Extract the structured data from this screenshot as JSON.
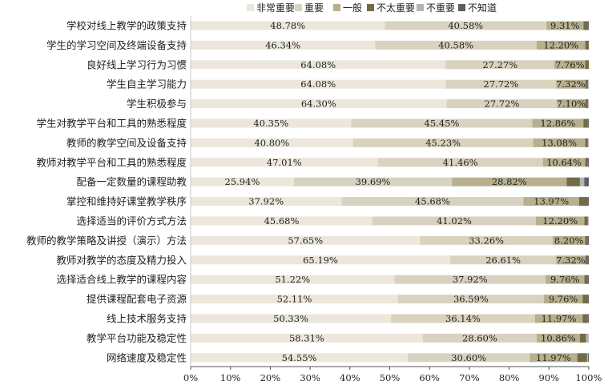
{
  "chart_data": {
    "type": "bar",
    "orientation": "horizontal",
    "stacked": true,
    "percent_stacked": true,
    "categories": [
      "学校对线上教学的政策支持",
      "学生的学习空间及终端设备支持",
      "良好线上学习行为习惯",
      "学生自主学习能力",
      "学生积极参与",
      "学生对教学平台和工具的熟悉程度",
      "教师的教学空间及设备支持",
      "教师对教学平台和工具的熟悉程度",
      "配备一定数量的课程助教",
      "掌控和维持好课堂教学秩序",
      "选择适当的评价方式方法",
      "教师的教学策略及讲授（演示）方法",
      "教师对教学的态度及精力投入",
      "选择适合线上教学的课程内容",
      "提供课程配套电子资源",
      "线上技术服务支持",
      "教学平台功能及稳定性",
      "网络速度及稳定性"
    ],
    "series": [
      {
        "name": "非常重要",
        "color": "#ebe7da",
        "values": [
          48.78,
          46.34,
          64.08,
          64.08,
          64.3,
          40.35,
          40.8,
          47.01,
          25.94,
          37.92,
          45.68,
          57.65,
          65.19,
          51.22,
          52.11,
          50.33,
          58.31,
          54.55
        ],
        "labels": [
          "48.78%",
          "46.34%",
          "64.08%",
          "64.08%",
          "64.30%",
          "40.35%",
          "40.80%",
          "47.01%",
          "25.94%",
          "37.92%",
          "45.68%",
          "57.65%",
          "65.19%",
          "51.22%",
          "52.11%",
          "50.33%",
          "58.31%",
          "54.55%"
        ]
      },
      {
        "name": "重要",
        "color": "#d8d3bf",
        "values": [
          40.58,
          40.58,
          27.27,
          27.72,
          27.72,
          45.45,
          45.23,
          41.46,
          39.69,
          45.68,
          41.02,
          33.26,
          26.61,
          37.92,
          36.59,
          36.14,
          28.6,
          30.6
        ],
        "labels": [
          "40.58%",
          "40.58%",
          "27.27%",
          "27.72%",
          "27.72%",
          "45.45%",
          "45.23%",
          "41.46%",
          "39.69%",
          "45.68%",
          "41.02%",
          "33.26%",
          "26.61%",
          "37.92%",
          "36.59%",
          "36.14%",
          "28.60%",
          "30.60%"
        ]
      },
      {
        "name": "一般",
        "color": "#b7b08f",
        "values": [
          9.31,
          12.2,
          7.76,
          7.32,
          7.1,
          12.86,
          13.08,
          10.64,
          28.82,
          13.97,
          12.2,
          8.2,
          7.32,
          9.76,
          9.76,
          11.97,
          10.86,
          11.97
        ],
        "labels": [
          "9.31%",
          "12.20%",
          "7.76%",
          "7.32%",
          "7.10%",
          "12.86%",
          "13.08%",
          "10.64%",
          "28.82%",
          "13.97%",
          "12.20%",
          "8.20%",
          "7.32%",
          "9.76%",
          "9.76%",
          "11.97%",
          "10.86%",
          "11.97%"
        ]
      },
      {
        "name": "不太重要",
        "color": "#716b48",
        "values": [
          1.11,
          0.88,
          0.89,
          0.66,
          0.66,
          1.11,
          0.67,
          0.67,
          3.32,
          2.21,
          0.88,
          0.67,
          0.67,
          0.89,
          1.33,
          1.33,
          1.55,
          2.44
        ],
        "labels": []
      },
      {
        "name": "不重要",
        "color": "#b4b4b4",
        "values": [
          0.0,
          0.0,
          0.0,
          0.22,
          0.22,
          0.0,
          0.22,
          0.0,
          1.11,
          0.0,
          0.22,
          0.0,
          0.0,
          0.0,
          0.0,
          0.0,
          0.68,
          0.22
        ],
        "labels": []
      },
      {
        "name": "不知道",
        "color": "#5e5e5e",
        "values": [
          0.22,
          0.0,
          0.0,
          0.0,
          0.0,
          0.23,
          0.0,
          0.22,
          1.12,
          0.22,
          0.0,
          0.22,
          0.21,
          0.21,
          0.21,
          0.23,
          0.0,
          0.22
        ],
        "labels": []
      }
    ],
    "xlim": [
      0,
      100
    ],
    "x_ticks": [
      "0%",
      "10%",
      "20%",
      "30%",
      "40%",
      "50%",
      "60%",
      "70%",
      "80%",
      "90%",
      "100%"
    ],
    "legend_position": "top",
    "grid": false
  }
}
